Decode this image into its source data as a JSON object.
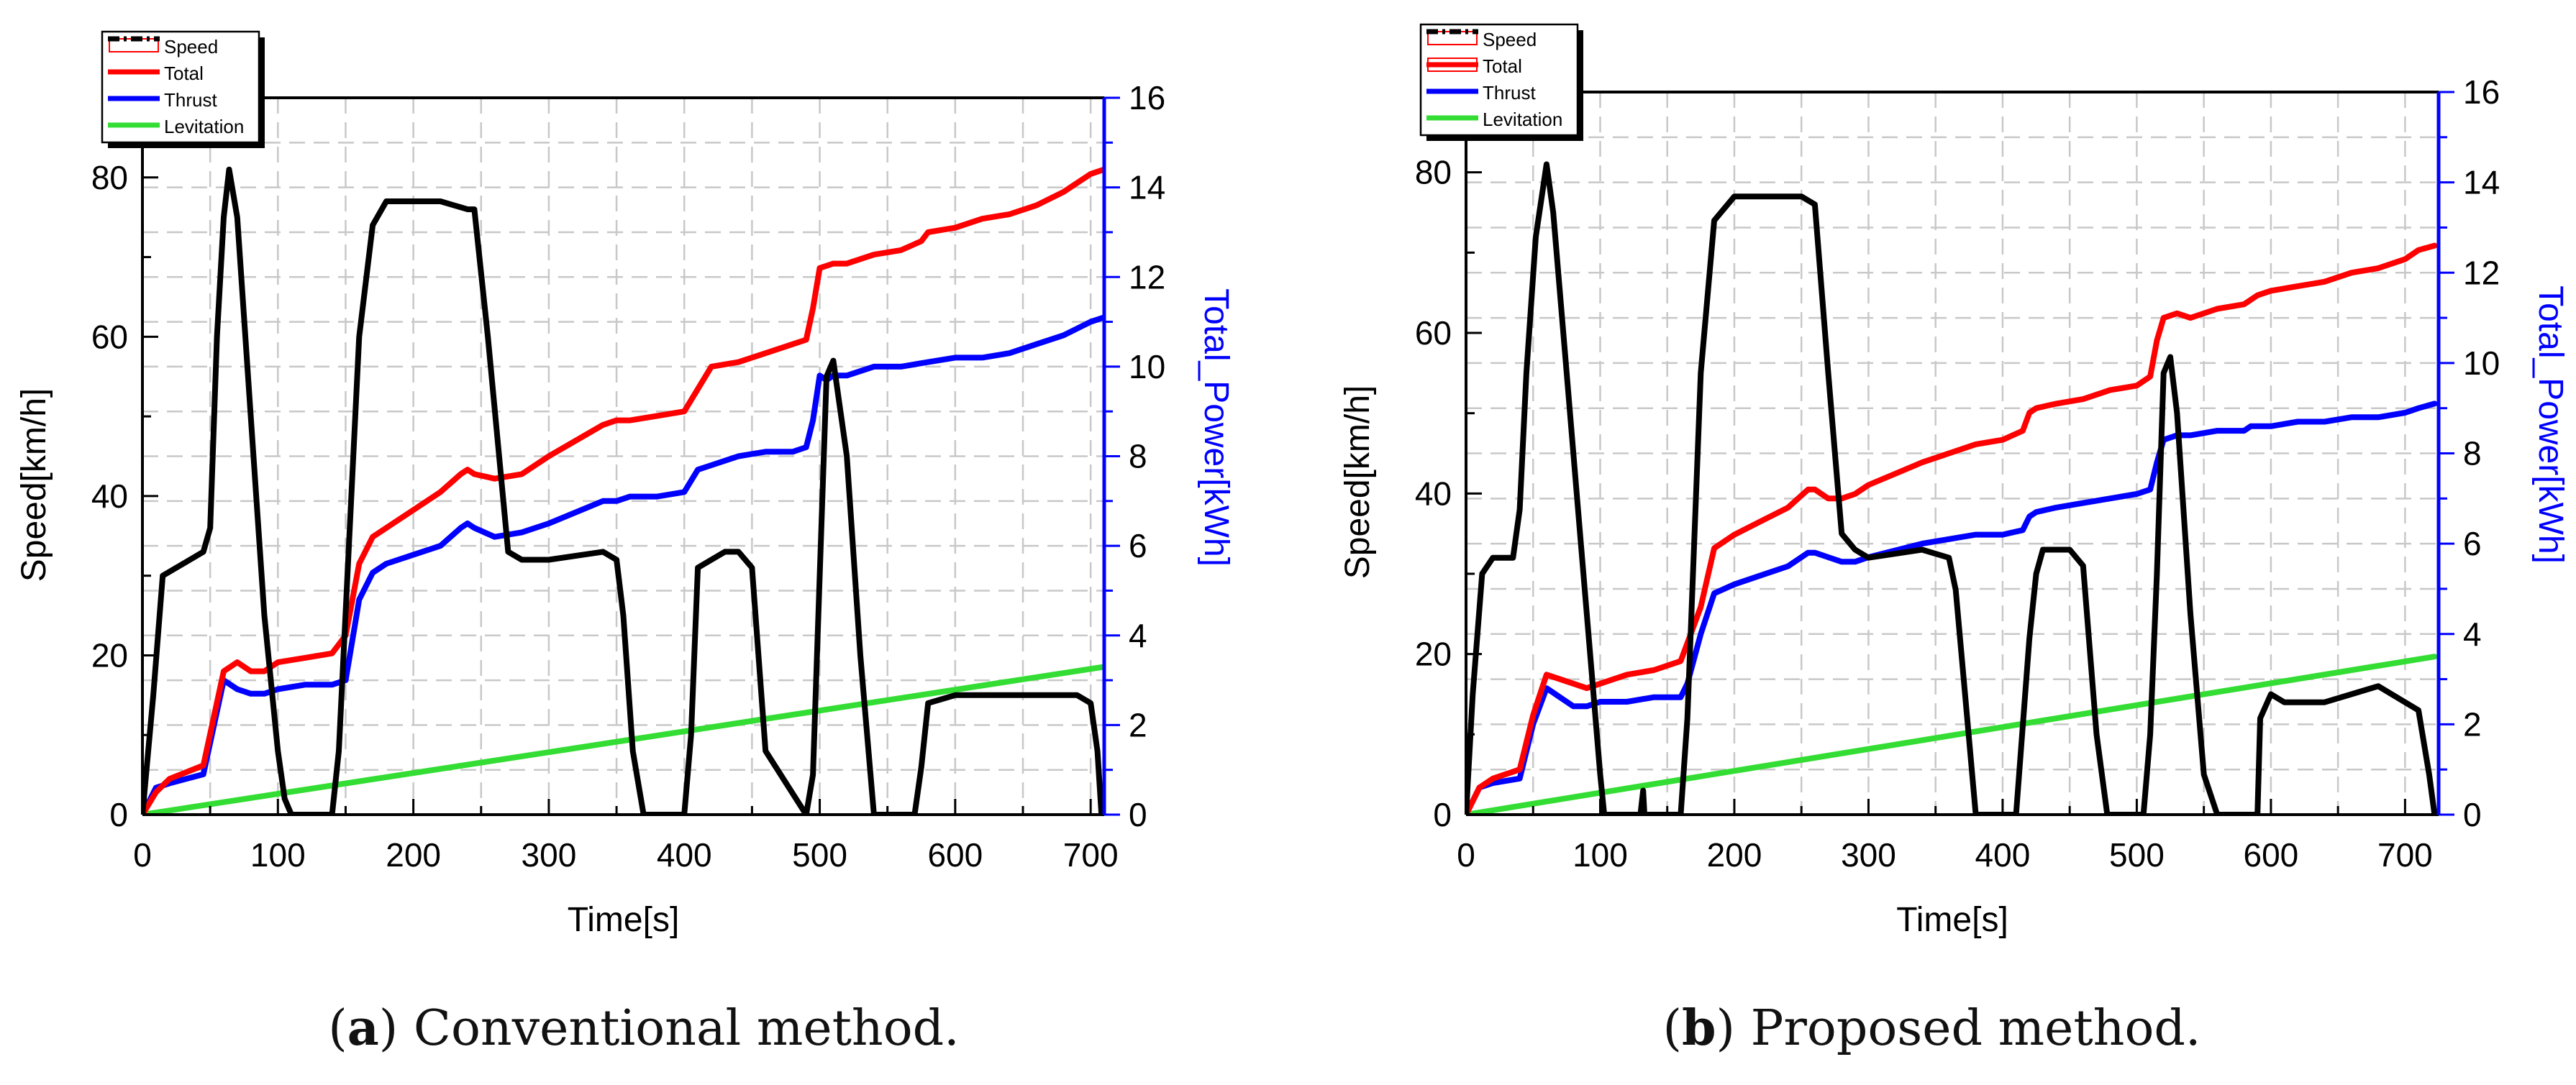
{
  "chart_data": [
    {
      "type": "line",
      "panel": "a",
      "xlabel": "Time[s]",
      "ylabel_left": "Speed[km/h]",
      "ylabel_right": "Total_Power[kWh]",
      "xlim": [
        0,
        710
      ],
      "ylim_left": [
        0,
        90
      ],
      "ylim_right": [
        0,
        16
      ],
      "xticks": [
        0,
        100,
        200,
        300,
        400,
        500,
        600,
        700
      ],
      "yticks_left": [
        0,
        20,
        40,
        60,
        80
      ],
      "yticks_right": [
        0,
        2,
        4,
        6,
        8,
        10,
        12,
        14,
        16
      ],
      "grid": true,
      "legend": [
        "Speed",
        "Total",
        "Thrust",
        "Levitation"
      ],
      "series": [
        {
          "name": "Speed",
          "axis": "left",
          "color": "#000000",
          "x": [
            0,
            8,
            15,
            25,
            45,
            50,
            55,
            60,
            64,
            70,
            80,
            90,
            100,
            105,
            110,
            140,
            145,
            160,
            170,
            180,
            200,
            220,
            240,
            245,
            255,
            270,
            280,
            300,
            340,
            350,
            355,
            362,
            370,
            400,
            405,
            410,
            430,
            440,
            450,
            460,
            490,
            495,
            500,
            505,
            510,
            520,
            530,
            540,
            570,
            575,
            580,
            600,
            650,
            690,
            700,
            705,
            708
          ],
          "y": [
            0,
            15,
            30,
            31,
            33,
            36,
            60,
            75,
            81,
            75,
            50,
            25,
            8,
            2,
            0,
            0,
            8,
            60,
            74,
            77,
            77,
            77,
            76,
            76,
            60,
            33,
            32,
            32,
            33,
            32,
            25,
            8,
            0,
            0,
            10,
            31,
            33,
            33,
            31,
            8,
            0,
            5,
            30,
            55,
            57,
            45,
            20,
            0,
            0,
            6,
            14,
            15,
            15,
            15,
            14,
            8,
            0
          ]
        },
        {
          "name": "Total",
          "axis": "right",
          "color": "#ff0000",
          "x": [
            0,
            10,
            20,
            45,
            60,
            70,
            80,
            90,
            100,
            120,
            140,
            150,
            160,
            170,
            180,
            200,
            220,
            235,
            240,
            245,
            260,
            280,
            300,
            340,
            350,
            360,
            380,
            400,
            410,
            420,
            440,
            460,
            480,
            490,
            495,
            500,
            510,
            520,
            540,
            560,
            575,
            580,
            600,
            620,
            640,
            660,
            680,
            700,
            710
          ],
          "y": [
            0,
            0.5,
            0.8,
            1.1,
            3.2,
            3.4,
            3.2,
            3.2,
            3.4,
            3.5,
            3.6,
            4,
            5.6,
            6.2,
            6.4,
            6.8,
            7.2,
            7.6,
            7.7,
            7.6,
            7.5,
            7.6,
            8,
            8.7,
            8.8,
            8.8,
            8.9,
            9,
            9.5,
            10,
            10.1,
            10.3,
            10.5,
            10.6,
            11.3,
            12.2,
            12.3,
            12.3,
            12.5,
            12.6,
            12.8,
            13,
            13.1,
            13.3,
            13.4,
            13.6,
            13.9,
            14.3,
            14.4
          ]
        },
        {
          "name": "Thrust",
          "axis": "right",
          "color": "#0000ff",
          "x": [
            0,
            10,
            20,
            45,
            60,
            70,
            80,
            90,
            100,
            120,
            140,
            150,
            160,
            170,
            180,
            200,
            220,
            235,
            240,
            245,
            260,
            280,
            300,
            340,
            350,
            360,
            380,
            400,
            410,
            420,
            440,
            460,
            480,
            490,
            495,
            500,
            505,
            510,
            520,
            540,
            560,
            580,
            600,
            620,
            640,
            660,
            680,
            700,
            710
          ],
          "y": [
            0,
            0.6,
            0.7,
            0.9,
            3,
            2.8,
            2.7,
            2.7,
            2.8,
            2.9,
            2.9,
            3,
            4.8,
            5.4,
            5.6,
            5.8,
            6,
            6.4,
            6.5,
            6.4,
            6.2,
            6.3,
            6.5,
            7,
            7,
            7.1,
            7.1,
            7.2,
            7.7,
            7.8,
            8,
            8.1,
            8.1,
            8.2,
            8.8,
            9.8,
            9.7,
            9.8,
            9.8,
            10,
            10,
            10.1,
            10.2,
            10.2,
            10.3,
            10.5,
            10.7,
            11,
            11.1
          ]
        },
        {
          "name": "Levitation",
          "axis": "right",
          "color": "#33dd33",
          "x": [
            0,
            710
          ],
          "y": [
            0,
            3.3
          ]
        }
      ]
    },
    {
      "type": "line",
      "panel": "b",
      "xlabel": "Time[s]",
      "ylabel_left": "Speed[km/h]",
      "ylabel_right": "Total_Power[kWh]",
      "xlim": [
        0,
        725
      ],
      "ylim_left": [
        0,
        90
      ],
      "ylim_right": [
        0,
        16
      ],
      "xticks": [
        0,
        100,
        200,
        300,
        400,
        500,
        600,
        700
      ],
      "yticks_left": [
        0,
        20,
        40,
        60,
        80
      ],
      "yticks_right": [
        0,
        2,
        4,
        6,
        8,
        10,
        12,
        14,
        16
      ],
      "grid": true,
      "legend": [
        "Speed",
        "Total",
        "Thrust",
        "Levitation"
      ],
      "series": [
        {
          "name": "Speed",
          "axis": "left",
          "color": "#000000",
          "x": [
            0,
            5,
            12,
            20,
            35,
            40,
            45,
            52,
            60,
            65,
            75,
            85,
            95,
            100,
            103,
            130,
            132,
            133,
            135,
            160,
            165,
            175,
            185,
            200,
            220,
            240,
            250,
            260,
            270,
            280,
            290,
            300,
            340,
            360,
            365,
            372,
            380,
            390,
            410,
            420,
            425,
            430,
            450,
            460,
            470,
            478,
            485,
            505,
            510,
            515,
            520,
            525,
            530,
            540,
            550,
            560,
            570,
            590,
            592,
            600,
            610,
            640,
            660,
            680,
            700,
            710,
            718,
            722
          ],
          "y": [
            0,
            15,
            30,
            32,
            32,
            38,
            55,
            72,
            81,
            75,
            55,
            35,
            15,
            5,
            0,
            0,
            3,
            0,
            0,
            0,
            12,
            55,
            74,
            77,
            77,
            77,
            77,
            76,
            55,
            35,
            33,
            32,
            33,
            32,
            28,
            15,
            0,
            0,
            0,
            22,
            30,
            33,
            33,
            31,
            10,
            0,
            0,
            0,
            10,
            30,
            55,
            57,
            50,
            25,
            5,
            0,
            0,
            0,
            12,
            15,
            14,
            14,
            15,
            16,
            14,
            13,
            5,
            0
          ]
        },
        {
          "name": "Total",
          "axis": "right",
          "color": "#ff0000",
          "x": [
            0,
            10,
            20,
            40,
            50,
            60,
            70,
            80,
            90,
            100,
            120,
            140,
            160,
            165,
            175,
            185,
            200,
            220,
            240,
            255,
            260,
            270,
            280,
            290,
            300,
            340,
            360,
            380,
            400,
            415,
            420,
            425,
            440,
            460,
            480,
            500,
            510,
            515,
            520,
            530,
            540,
            560,
            580,
            585,
            590,
            600,
            620,
            640,
            660,
            680,
            700,
            710,
            722
          ],
          "y": [
            0,
            0.6,
            0.8,
            1,
            2.2,
            3.1,
            3,
            2.9,
            2.8,
            2.9,
            3.1,
            3.2,
            3.4,
            3.8,
            4.6,
            5.9,
            6.2,
            6.5,
            6.8,
            7.2,
            7.2,
            7,
            7,
            7.1,
            7.3,
            7.8,
            8,
            8.2,
            8.3,
            8.5,
            8.9,
            9.0,
            9.1,
            9.2,
            9.4,
            9.5,
            9.7,
            10.5,
            11,
            11.1,
            11.0,
            11.2,
            11.3,
            11.4,
            11.5,
            11.6,
            11.7,
            11.8,
            12,
            12.1,
            12.3,
            12.5,
            12.6
          ]
        },
        {
          "name": "Thrust",
          "axis": "right",
          "color": "#0000ff",
          "x": [
            0,
            10,
            20,
            40,
            50,
            60,
            70,
            80,
            90,
            100,
            120,
            140,
            160,
            165,
            175,
            185,
            200,
            220,
            240,
            255,
            260,
            270,
            280,
            290,
            300,
            340,
            360,
            380,
            400,
            415,
            420,
            425,
            440,
            460,
            480,
            500,
            510,
            515,
            520,
            530,
            540,
            560,
            580,
            585,
            590,
            600,
            620,
            640,
            660,
            680,
            700,
            710,
            722
          ],
          "y": [
            0,
            0.6,
            0.7,
            0.8,
            2,
            2.8,
            2.6,
            2.4,
            2.4,
            2.5,
            2.5,
            2.6,
            2.6,
            2.9,
            4,
            4.9,
            5.1,
            5.3,
            5.5,
            5.8,
            5.8,
            5.7,
            5.6,
            5.6,
            5.7,
            6,
            6.1,
            6.2,
            6.2,
            6.3,
            6.6,
            6.7,
            6.8,
            6.9,
            7,
            7.1,
            7.2,
            7.8,
            8.3,
            8.4,
            8.4,
            8.5,
            8.5,
            8.6,
            8.6,
            8.6,
            8.7,
            8.7,
            8.8,
            8.8,
            8.9,
            9,
            9.1
          ]
        },
        {
          "name": "Levitation",
          "axis": "right",
          "color": "#33dd33",
          "x": [
            0,
            722
          ],
          "y": [
            0,
            3.5
          ]
        }
      ]
    }
  ],
  "captions": [
    {
      "label": "a",
      "text": " Conventional method."
    },
    {
      "label": "b",
      "text": " Proposed method."
    }
  ]
}
